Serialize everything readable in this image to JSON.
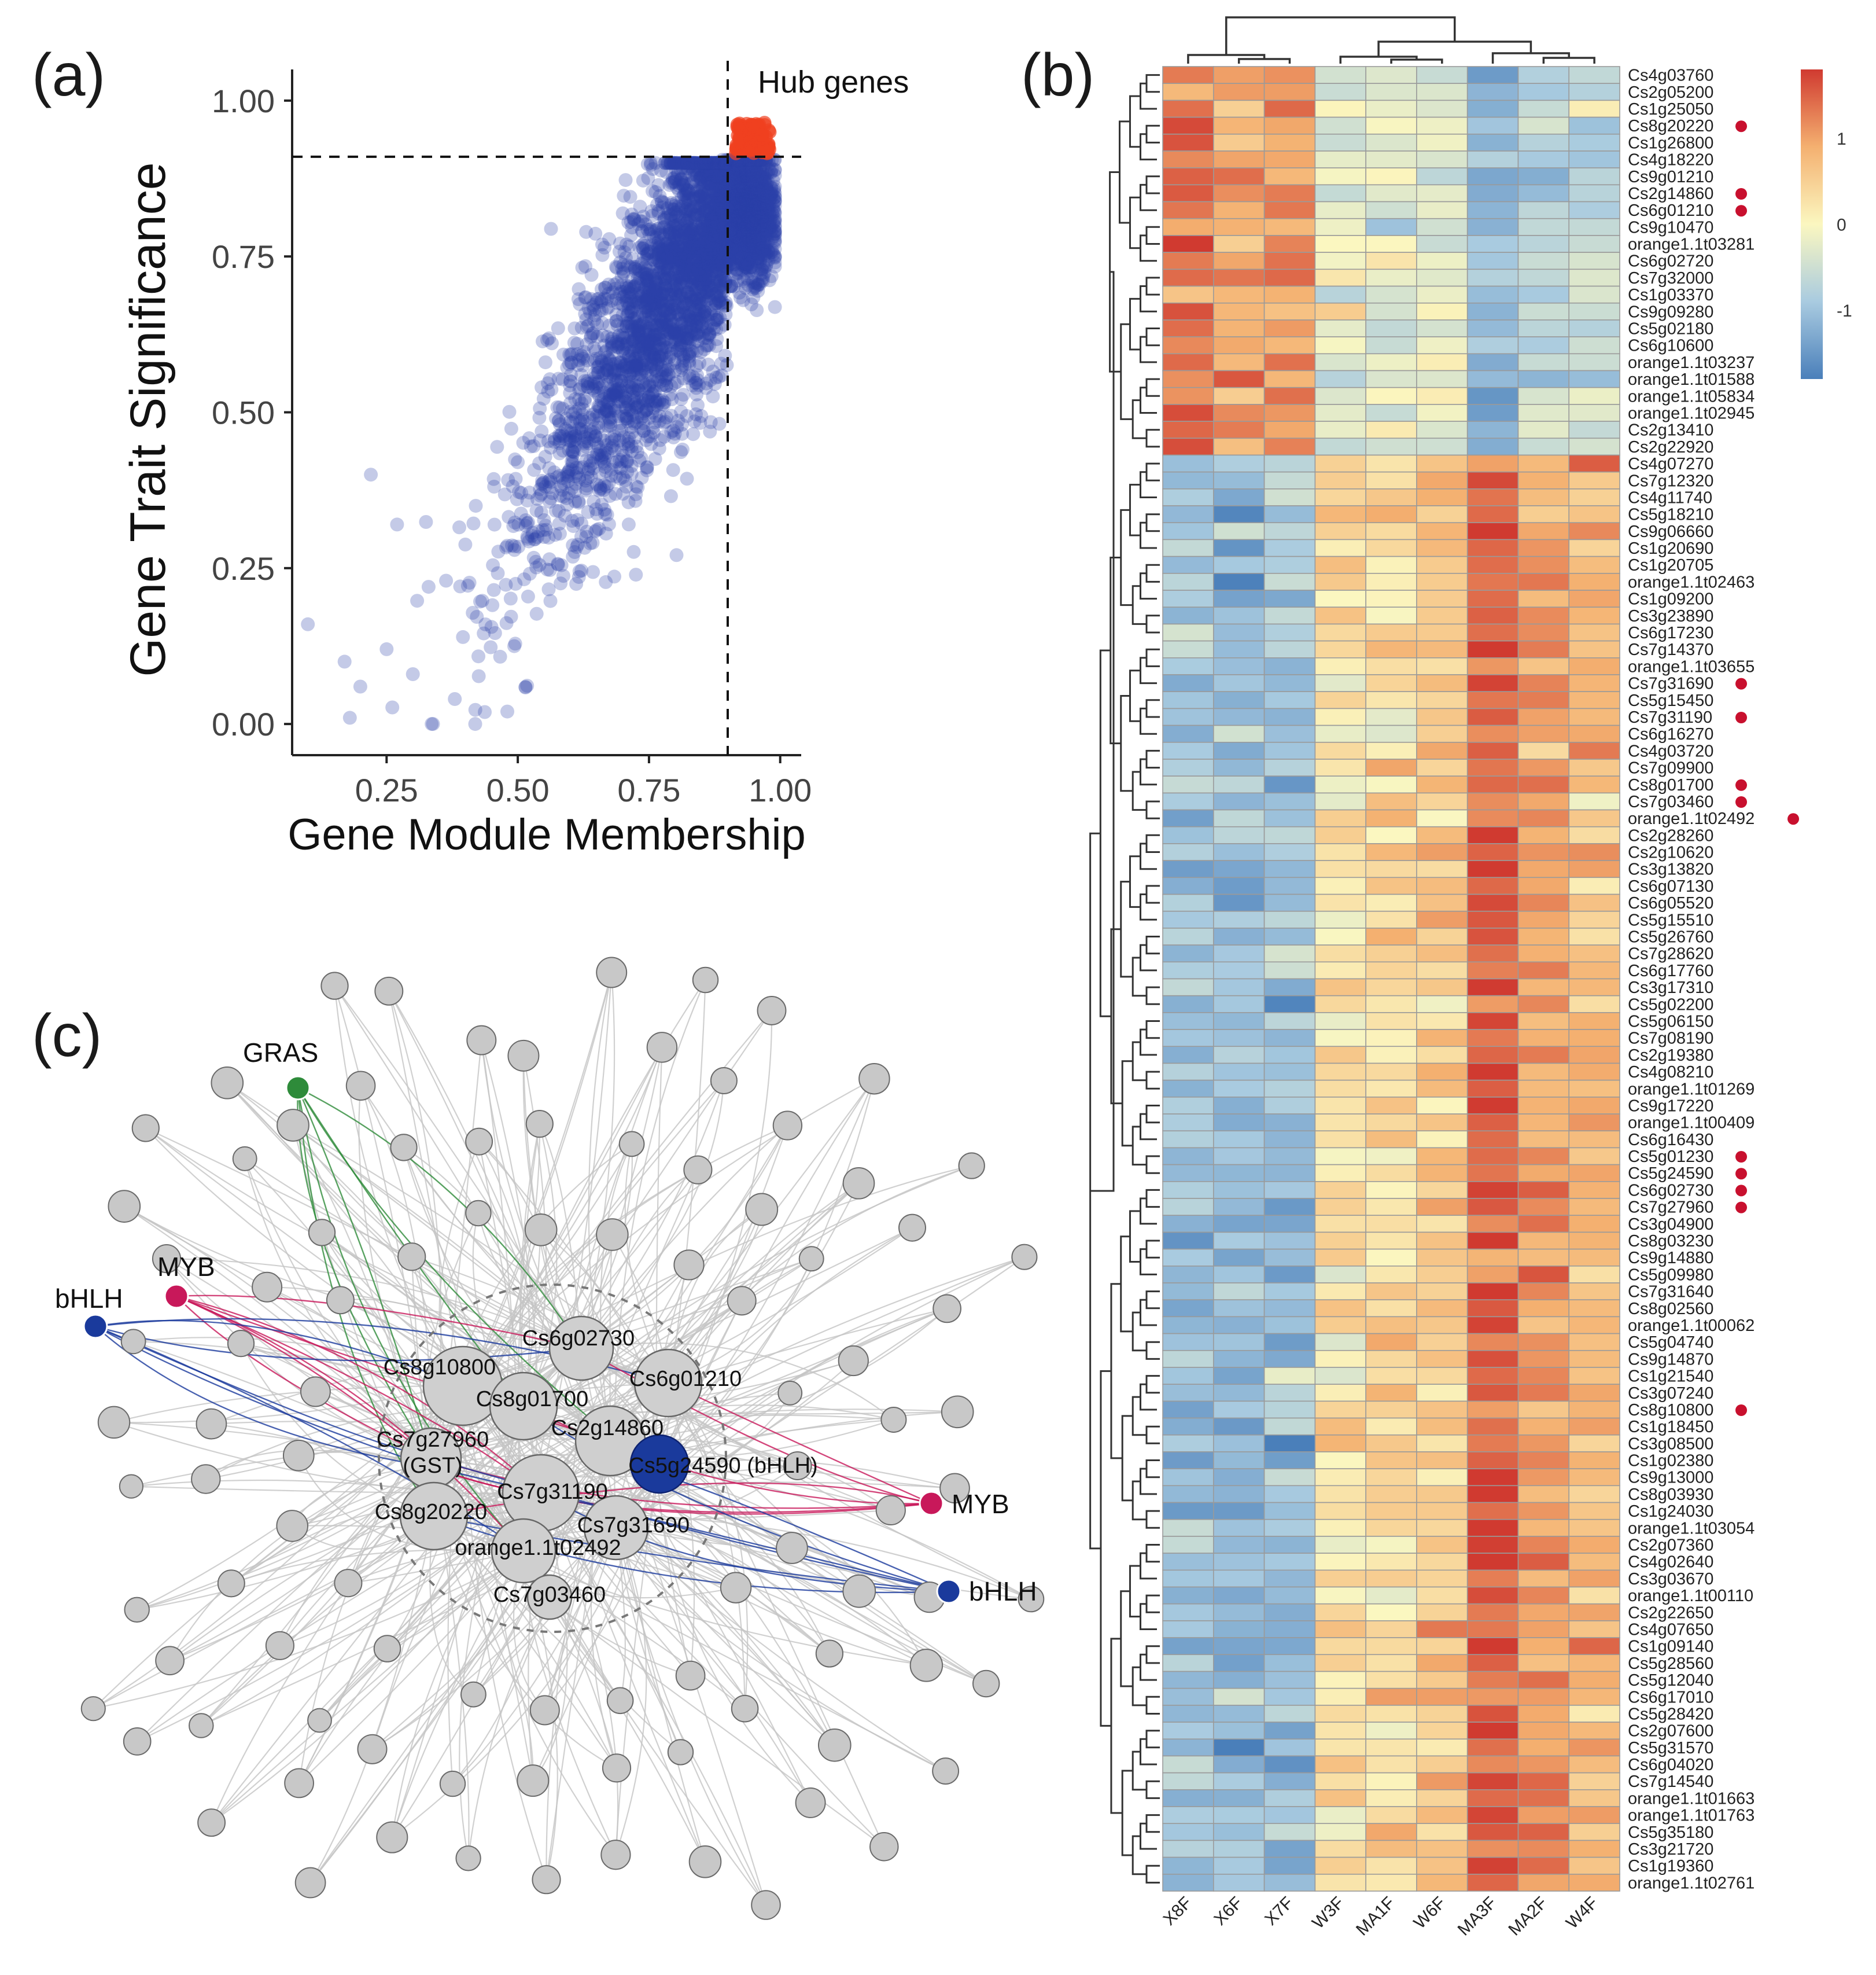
{
  "panels": {
    "a": "(a)",
    "b": "(b)",
    "c": "(c)"
  },
  "chart_data": [
    {
      "type": "scatter",
      "panel": "a",
      "xlabel": "Gene Module Membership",
      "ylabel": "Gene Trait Significance",
      "xlim": [
        0.07,
        1.04
      ],
      "ylim": [
        -0.05,
        1.05
      ],
      "xticks": [
        "0.25",
        "0.50",
        "0.75",
        "1.00"
      ],
      "yticks": [
        "0.00",
        "0.25",
        "0.50",
        "0.75",
        "1.00"
      ],
      "thresholds": {
        "module_membership": 0.9,
        "trait_significance": 0.91
      },
      "annotation": "Hub genes",
      "n_points_estimate": 3000,
      "colors": {
        "non_hub": "#2a3fa8",
        "hub": "#f04020"
      },
      "sample_points": [
        [
          0.1,
          0.16
        ],
        [
          0.17,
          0.1
        ],
        [
          0.18,
          0.01
        ],
        [
          0.2,
          0.06
        ],
        [
          0.22,
          0.4
        ],
        [
          0.25,
          0.12
        ],
        [
          0.27,
          0.32
        ],
        [
          0.3,
          0.08
        ],
        [
          0.33,
          0.22
        ],
        [
          0.38,
          0.04
        ],
        [
          0.42,
          0.35
        ],
        [
          0.48,
          0.02
        ],
        [
          0.5,
          0.42
        ],
        [
          0.55,
          0.3
        ],
        [
          0.6,
          0.55
        ],
        [
          0.65,
          0.45
        ],
        [
          0.7,
          0.62
        ],
        [
          0.75,
          0.7
        ],
        [
          0.8,
          0.82
        ],
        [
          0.85,
          0.85
        ],
        [
          0.9,
          0.8
        ],
        [
          0.93,
          0.86
        ],
        [
          0.95,
          0.93
        ],
        [
          0.96,
          0.95
        ]
      ]
    },
    {
      "type": "heatmap",
      "panel": "b",
      "columns": [
        "X8F",
        "X6F",
        "X7F",
        "W3F",
        "MA1F",
        "W6F",
        "MA3F",
        "MA2F",
        "W4F"
      ],
      "rows": [
        "Cs4g03760",
        "Cs2g05200",
        "Cs1g25050",
        "Cs8g20220",
        "Cs1g26800",
        "Cs4g18220",
        "Cs9g01210",
        "Cs2g14860",
        "Cs6g01210",
        "Cs9g10470",
        "orange1.1t03281",
        "Cs6g02720",
        "Cs7g32000",
        "Cs1g03370",
        "Cs9g09280",
        "Cs5g02180",
        "Cs6g10600",
        "orange1.1t03237",
        "orange1.1t01588",
        "orange1.1t05834",
        "orange1.1t02945",
        "Cs2g13410",
        "Cs2g22920",
        "Cs4g07270",
        "Cs7g12320",
        "Cs4g11740",
        "Cs5g18210",
        "Cs9g06660",
        "Cs1g20690",
        "Cs1g20705",
        "orange1.1t02463",
        "Cs1g09200",
        "Cs3g23890",
        "Cs6g17230",
        "Cs7g14370",
        "orange1.1t03655",
        "Cs7g31690",
        "Cs5g15450",
        "Cs7g31190",
        "Cs6g16270",
        "Cs4g03720",
        "Cs7g09900",
        "Cs8g01700",
        "Cs7g03460",
        "orange1.1t02492",
        "Cs2g28260",
        "Cs2g10620",
        "Cs3g13820",
        "Cs6g07130",
        "Cs6g05520",
        "Cs5g15510",
        "Cs5g26760",
        "Cs7g28620",
        "Cs6g17760",
        "Cs3g17310",
        "Cs5g02200",
        "Cs5g06150",
        "Cs7g08190",
        "Cs2g19380",
        "Cs4g08210",
        "orange1.1t01269",
        "Cs9g17220",
        "orange1.1t00409",
        "Cs6g16430",
        "Cs5g01230",
        "Cs5g24590",
        "Cs6g02730",
        "Cs7g27960",
        "Cs3g04900",
        "Cs8g03230",
        "Cs9g14880",
        "Cs5g09980",
        "Cs7g31640",
        "Cs8g02560",
        "orange1.1t00062",
        "Cs5g04740",
        "Cs9g14870",
        "Cs1g21540",
        "Cs3g07240",
        "Cs8g10800",
        "Cs1g18450",
        "Cs3g08500",
        "Cs1g02380",
        "Cs9g13000",
        "Cs8g03930",
        "Cs1g24030",
        "orange1.1t03054",
        "Cs2g07360",
        "Cs4g02640",
        "Cs3g03670",
        "orange1.1t00110",
        "Cs2g22650",
        "Cs4g07650",
        "Cs1g09140",
        "Cs5g28560",
        "Cs5g12040",
        "Cs6g17010",
        "Cs5g28420",
        "Cs2g07600",
        "Cs5g31570",
        "Cs6g04020",
        "Cs7g14540",
        "orange1.1t01663",
        "orange1.1t01763",
        "Cs5g35180",
        "Cs3g21720",
        "Cs1g19360",
        "orange1.1t02761"
      ],
      "marked_rows": [
        "Cs8g20220",
        "Cs2g14860",
        "Cs6g01210",
        "Cs7g31690",
        "Cs7g31190",
        "Cs8g01700",
        "Cs7g03460",
        "orange1.1t02492",
        "Cs5g01230",
        "Cs5g24590",
        "Cs6g02730",
        "Cs7g27960",
        "Cs8g10800"
      ],
      "cluster1_rows": 23,
      "cluster1_profile": [
        1.3,
        0.8,
        1.1,
        -0.25,
        -0.35,
        -0.45,
        -1.2,
        -0.75,
        -0.55
      ],
      "cluster2_profile": [
        -1.0,
        -1.05,
        -1.0,
        0.25,
        0.35,
        0.55,
        1.55,
        1.05,
        0.8
      ],
      "legend_ticks": [
        "1",
        "0",
        "-1"
      ],
      "legend_range": [
        -1.8,
        1.8
      ],
      "colors": {
        "low": "#4a7fba",
        "mid": "#fbf7c0",
        "high": "#d03a30",
        "marker": "#c8102e"
      }
    },
    {
      "type": "network",
      "panel": "c",
      "hub_labels": [
        "Cs6g02730",
        "Cs8g10800",
        "Cs6g01210",
        "Cs8g01700",
        "Cs2g14860",
        "Cs7g27960",
        "(GST)",
        "Cs5g24590 (bHLH)",
        "Cs7g31190",
        "Cs8g20220",
        "Cs7g31690",
        "orange1.1t02492",
        "Cs7g03460"
      ],
      "tf_labels": [
        "GRAS",
        "MYB",
        "bHLH",
        "MYB",
        "bHLH"
      ],
      "colors": {
        "node": "#c8c8c8",
        "edge": "#c4c4c4",
        "gras": "#2e8b3a",
        "myb": "#c8185a",
        "bhlh": "#1a3a9c",
        "hub_bhlh": "#1a3a9c"
      }
    }
  ]
}
